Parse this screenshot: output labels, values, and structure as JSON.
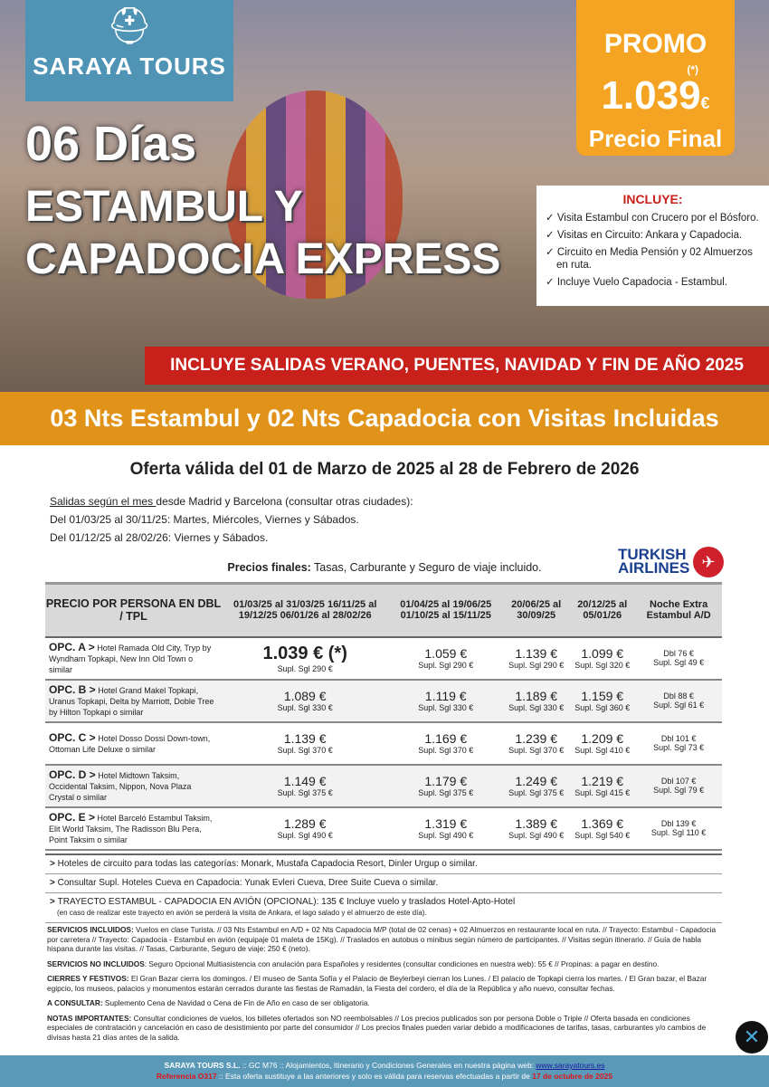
{
  "brand": {
    "name": "SARAYA TOURS",
    "logo_icon": "hat-logo"
  },
  "hero": {
    "days": "06 Días",
    "title1": "ESTAMBUL Y",
    "title2": "CAPADOCIA EXPRESS"
  },
  "promo": {
    "label": "PROMO",
    "asterisk": "(*)",
    "price": "1.039",
    "currency": "€",
    "sub": "Precio Final",
    "color": "#f4a322"
  },
  "includes": {
    "title": "INCLUYE:",
    "items": [
      "Visita Estambul con Crucero por el Bósforo.",
      "Visitas en Circuito: Ankara y Capadocia.",
      "Circuito en Media Pensión y 02 Almuerzos en ruta.",
      "Incluye Vuelo Capadocia - Estambul."
    ]
  },
  "banner_red": "INCLUYE SALIDAS VERANO, PUENTES, NAVIDAD Y FIN DE AÑO 2025",
  "banner_orange": "03 Nts Estambul y 02 Nts Capadocia con Visitas Incluidas",
  "validity": "Oferta válida del 01 de Marzo de 2025 al 28 de Febrero de 2026",
  "departures": {
    "underlined": "Salidas según el mes ",
    "rest": "desde Madrid y Barcelona (consultar otras ciudades):",
    "line1": "Del 01/03/25 al 30/11/25: Martes, Miércoles, Viernes y Sábados.",
    "line2": "Del 01/12/25 al 28/02/26: Viernes y Sábados."
  },
  "final_prices": {
    "bold": "Precios finales:",
    "rest": " Tasas, Carburante y Seguro de viaje incluido."
  },
  "airline": {
    "line1": "TURKISH",
    "line2": "AIRLINES"
  },
  "table": {
    "headers": [
      "PRECIO POR PERSONA EN DBL / TPL",
      "01/03/25 al 31/03/25 16/11/25 al 19/12/25 06/01/26 al 28/02/26",
      "01/04/25 al 19/06/25 01/10/25 al 15/11/25",
      "20/06/25 al 30/09/25",
      "20/12/25 al 05/01/26",
      "Noche Extra Estambul A/D"
    ],
    "rows": [
      {
        "opt": "OPC. A >",
        "hotels": "Hotel Ramada Old City, Tryp by Wyndham Topkapi, New Inn Old Town o similar",
        "prices": [
          "1.039 € (*)",
          "1.059 €",
          "1.139 €",
          "1.099 €"
        ],
        "sgl": [
          "Supl. Sgl 290 €",
          "Supl. Sgl 290 €",
          "Supl. Sgl 290 €",
          "Supl. Sgl 320 €"
        ],
        "extra_dbl": "Dbl 76 €",
        "extra_sgl": "Supl. Sgl 49 €"
      },
      {
        "opt": "OPC. B >",
        "hotels": "Hotel Grand Makel Topkapi, Uranus Topkapi, Delta by Marriott, Doble Tree by Hilton Topkapi o similar",
        "prices": [
          "1.089 €",
          "1.119 €",
          "1.189 €",
          "1.159 €"
        ],
        "sgl": [
          "Supl. Sgl 330 €",
          "Supl. Sgl 330 €",
          "Supl. Sgl 330 €",
          "Supl. Sgl 360 €"
        ],
        "extra_dbl": "Dbl 88 €",
        "extra_sgl": "Supl. Sgl 61 €"
      },
      {
        "opt": "OPC. C >",
        "hotels": "Hotel Dosso Dossi Down-town, Ottoman Life Deluxe o similar",
        "prices": [
          "1.139 €",
          "1.169 €",
          "1.239 €",
          "1.209 €"
        ],
        "sgl": [
          "Supl. Sgl 370 €",
          "Supl. Sgl 370 €",
          "Supl. Sgl 370 €",
          "Supl. Sgl 410 €"
        ],
        "extra_dbl": "Dbl 101 €",
        "extra_sgl": "Supl. Sgl 73 €"
      },
      {
        "opt": "OPC. D >",
        "hotels": "Hotel Midtown Taksim, Occidental Taksim, Nippon, Nova Plaza Crystal o similar",
        "prices": [
          "1.149 €",
          "1.179 €",
          "1.249 €",
          "1.219 €"
        ],
        "sgl": [
          "Supl. Sgl 375 €",
          "Supl. Sgl 375 €",
          "Supl. Sgl 375 €",
          "Supl. Sgl 415 €"
        ],
        "extra_dbl": "Dbl 107 €",
        "extra_sgl": "Supl. Sgl 79 €"
      },
      {
        "opt": "OPC. E >",
        "hotels": "Hotel Barceló Estambul Taksim, Elit World Taksim, The Radisson Blu Pera, Point Taksim o similar",
        "prices": [
          "1.289 €",
          "1.319 €",
          "1.389 €",
          "1.369 €"
        ],
        "sgl": [
          "Supl. Sgl 490 €",
          "Supl. Sgl 490 €",
          "Supl. Sgl 490 €",
          "Supl. Sgl 540 €"
        ],
        "extra_dbl": "Dbl 139 €",
        "extra_sgl": "Supl. Sgl 110 €"
      }
    ]
  },
  "notes": [
    "Hoteles de circuito para todas las categorías: Monark, Mustafa Capadocia Resort, Dinler Urgup o similar.",
    "Consultar Supl. Hoteles Cueva en Capadocia: Yunak Evleri Cueva, Dree Suite Cueva o similar.",
    "TRAYECTO ESTAMBUL - CAPADOCIA EN AVIÓN (OPCIONAL): 135 € Incluye vuelo y traslados Hotel-Apto-Hotel"
  ],
  "note3_sub": "(en caso de realizar este trayecto en avión se perderá la visita de Ankara, el lago salado y el almuerzo de este día).",
  "fine": [
    {
      "k": "SERVICIOS INCLUIDOS:",
      "v": " Vuelos en clase Turista. // 03 Nts Estambul en A/D + 02 Nts Capadocia M/P (total de 02 cenas) + 02 Almuerzos en restaurante local en ruta. // Trayecto: Estambul - Capadocia por carretera // Trayecto: Capadocia - Estambul en avión (equipaje 01 maleta de 15Kg). // Traslados en autobus o minibus según número de participantes. // Visitas según itinerario. // Guía de habla hispana durante las visitas. // Tasas, Carburante, Seguro de viaje: 250 € (neto)."
    },
    {
      "k": "SERVICIOS NO INCLUIDOS",
      "v": ": Seguro Opcional Multiasistencia con anulación para Españoles y residentes (consultar condiciones en nuestra web): 55 € // Propinas: a pagar en destino."
    },
    {
      "k": "CIERRES Y FESTIVOS:",
      "v": " El Gran Bazar cierra los domingos. / El museo de Santa Sofía y el Palacio de Beylerbeyi cierran los Lunes. / El palacio de Topkapi cierra los martes. / El Gran bazar, el Bazar egipcio, los museos, palacios y monumentos estarán cerrados durante las fiestas de Ramadán, la Fiesta del cordero, el día de la República y año nuevo, consultar fechas."
    },
    {
      "k": "A CONSULTAR:",
      "v": " Suplemento Cena de Navidad o Cena de Fin de Año en caso de ser obligatoria."
    },
    {
      "k": "NOTAS IMPORTANTES:",
      "v": " Consultar condiciones de vuelos, los billetes ofertados son NO reembolsables // Los precios publicados son por persona Doble o Triple // Oferta basada en condiciones especiales de contratación y cancelación en caso de desistimiento por parte del consumidor // Los precios finales pueden variar debido a modificaciones de tarifas, tasas, carburantes y/o cambios de divisas hasta 21 días antes de la salida."
    }
  ],
  "footer": {
    "company": "SARAYA TOURS S.L.",
    "line1": " :: GC M76 ::  Alojamientos, Itinerario y Condiciones Generales en nuestra página web: ",
    "url": "www.sarayatours.es",
    "ref": "Referencia O317",
    "line2": " :: Esta oferta sustituye a las anteriores y solo es válida para reservas efectuadas a partir de ",
    "date": "17 de octubre de 2025"
  }
}
